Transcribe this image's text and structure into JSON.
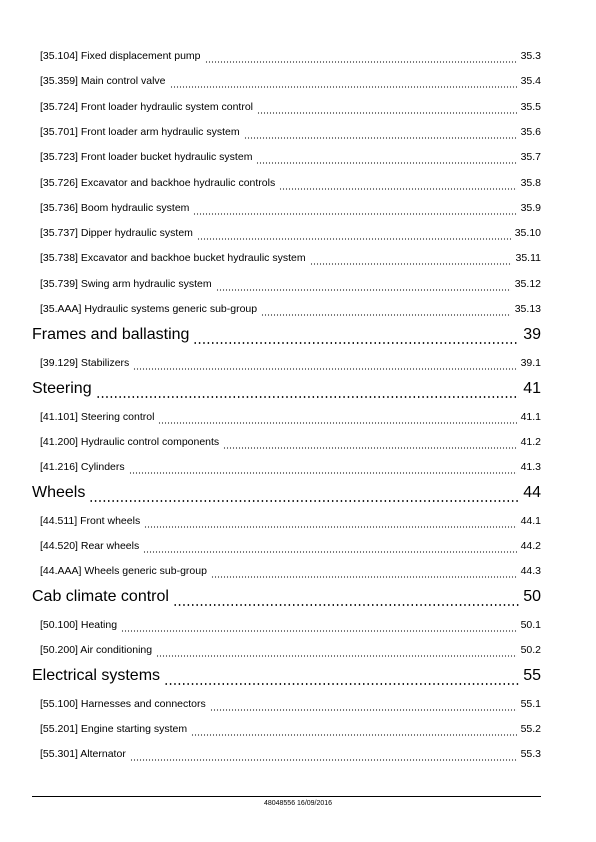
{
  "items": [
    {
      "label": "[35.104] Fixed displacement pump",
      "page": "35.3"
    },
    {
      "label": "[35.359] Main control valve",
      "page": "35.4"
    },
    {
      "label": "[35.724] Front loader hydraulic system control",
      "page": "35.5"
    },
    {
      "label": "[35.701] Front loader arm hydraulic system",
      "page": "35.6"
    },
    {
      "label": "[35.723] Front loader bucket hydraulic system",
      "page": "35.7"
    },
    {
      "label": "[35.726] Excavator and backhoe hydraulic controls",
      "page": "35.8"
    },
    {
      "label": "[35.736] Boom hydraulic system",
      "page": "35.9"
    },
    {
      "label": "[35.737] Dipper hydraulic system",
      "page": "35.10"
    },
    {
      "label": "[35.738] Excavator and backhoe bucket hydraulic system",
      "page": "35.11"
    },
    {
      "label": "[35.739] Swing arm hydraulic system",
      "page": "35.12"
    },
    {
      "label": "[35.AAA] Hydraulic systems generic sub-group",
      "page": "35.13"
    }
  ],
  "sections": [
    {
      "title": "Frames and ballasting",
      "page": "39",
      "items": [
        {
          "label": "[39.129] Stabilizers",
          "page": "39.1"
        }
      ]
    },
    {
      "title": "Steering",
      "page": "41",
      "items": [
        {
          "label": "[41.101] Steering control",
          "page": "41.1"
        },
        {
          "label": "[41.200] Hydraulic control components",
          "page": "41.2"
        },
        {
          "label": "[41.216] Cylinders",
          "page": "41.3"
        }
      ]
    },
    {
      "title": "Wheels",
      "page": "44",
      "items": [
        {
          "label": "[44.511] Front wheels",
          "page": "44.1"
        },
        {
          "label": "[44.520] Rear wheels",
          "page": "44.2"
        },
        {
          "label": "[44.AAA] Wheels generic sub-group",
          "page": "44.3"
        }
      ]
    },
    {
      "title": "Cab climate control",
      "page": "50",
      "items": [
        {
          "label": "[50.100] Heating",
          "page": "50.1"
        },
        {
          "label": "[50.200] Air conditioning",
          "page": "50.2"
        }
      ]
    },
    {
      "title": "Electrical systems",
      "page": "55",
      "items": [
        {
          "label": "[55.100] Harnesses and connectors",
          "page": "55.1"
        },
        {
          "label": "[55.201] Engine starting system",
          "page": "55.2"
        },
        {
          "label": "[55.301] Alternator",
          "page": "55.3"
        }
      ]
    }
  ],
  "footer": "48048556 16/09/2016"
}
